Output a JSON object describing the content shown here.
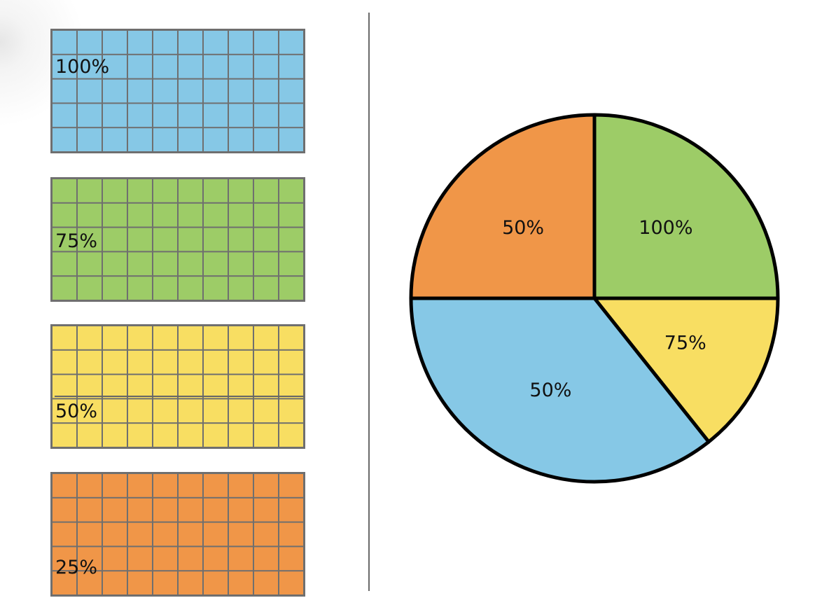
{
  "colors": {
    "blue": "#86c8e6",
    "green": "#9dcc67",
    "yellow": "#f8de62",
    "orange": "#f09648",
    "grid_line": "#6f6f6f",
    "pie_stroke": "#000000"
  },
  "grids": [
    {
      "label": "100%",
      "color": "blue",
      "rows": 5,
      "cols": 10
    },
    {
      "label": "75%",
      "color": "green",
      "rows": 5,
      "cols": 10
    },
    {
      "label": "50%",
      "color": "yellow",
      "rows": 5,
      "cols": 10
    },
    {
      "label": "25%",
      "color": "orange",
      "rows": 5,
      "cols": 10
    }
  ],
  "chart_data": {
    "type": "pie",
    "start_angle_deg": 90,
    "direction": "clockwise",
    "slices": [
      {
        "label": "100%",
        "color": "green",
        "share": 0.25
      },
      {
        "label": "75%",
        "color": "yellow",
        "share": 0.143
      },
      {
        "label": "50%",
        "color": "blue",
        "share": 0.357
      },
      {
        "label": "50%",
        "color": "orange",
        "share": 0.25
      }
    ]
  }
}
